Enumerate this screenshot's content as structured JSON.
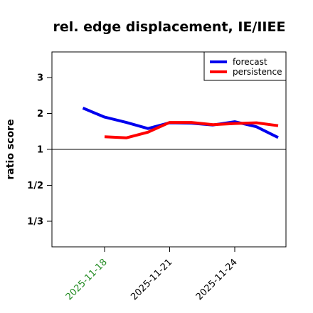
{
  "chart_data": {
    "type": "line",
    "title": "rel. edge displacement, IE/IIEE",
    "xlabel": "",
    "ylabel": "ratio score",
    "x": [
      "2025-11-17",
      "2025-11-18",
      "2025-11-19",
      "2025-11-20",
      "2025-11-21",
      "2025-11-22",
      "2025-11-23",
      "2025-11-24",
      "2025-11-25",
      "2025-11-26"
    ],
    "series": [
      {
        "name": "forecast",
        "color": "#0000ee",
        "values": [
          2.15,
          1.9,
          1.75,
          1.58,
          1.74,
          1.73,
          1.68,
          1.77,
          1.63,
          1.33
        ]
      },
      {
        "name": "persistence",
        "color": "#ff0000",
        "values": [
          null,
          1.35,
          1.32,
          1.48,
          1.75,
          1.75,
          1.69,
          1.72,
          1.74,
          1.66
        ]
      }
    ],
    "yscale": "reciprocal",
    "yticks": [
      {
        "value": 3,
        "label": "3"
      },
      {
        "value": 2,
        "label": "2"
      },
      {
        "value": 1,
        "label": "1"
      },
      {
        "value": 0.5,
        "label": "1/2"
      },
      {
        "value": 0.3333,
        "label": "1/3"
      }
    ],
    "xticks": [
      {
        "value": "2025-11-18",
        "label": "2025-11-18",
        "color": "#228b22"
      },
      {
        "value": "2025-11-21",
        "label": "2025-11-21",
        "color": "#000000"
      },
      {
        "value": "2025-11-24",
        "label": "2025-11-24",
        "color": "#000000"
      }
    ],
    "reference_line": 1,
    "legend_position": "top-right",
    "grid": false
  }
}
